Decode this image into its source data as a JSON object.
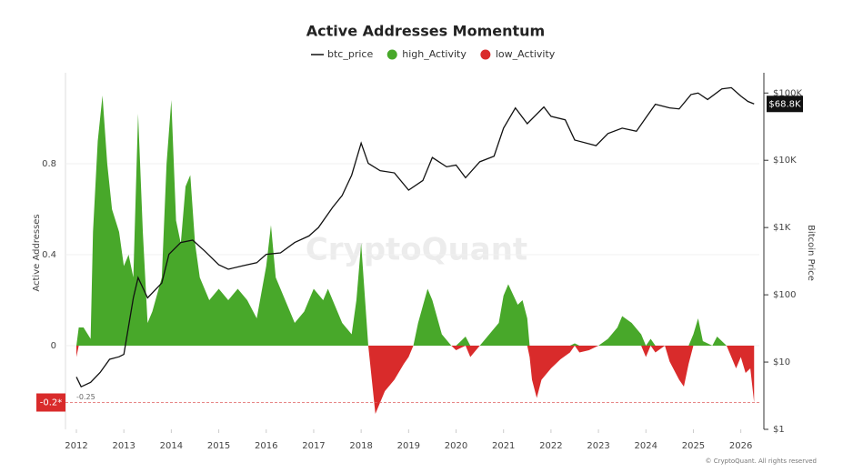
{
  "chart_data": {
    "type": "area",
    "title": "Active Addresses Momentum",
    "ylabel": "Active Addresses",
    "y2label": "Bitcoin Price",
    "watermark": "CryptoQuant",
    "footer": "© CryptoQuant. All rights reserved",
    "current_value_label": "-0.2*",
    "reference_line": -0.25,
    "price_label": "$68.8K",
    "xlim": [
      2011.77,
      2026.39
    ],
    "xticks": [
      2012,
      2013,
      2014,
      2015,
      2016,
      2017,
      2018,
      2019,
      2020,
      2021,
      2022,
      2023,
      2024,
      2025,
      2026
    ],
    "ylim": [
      -0.368,
      1.2
    ],
    "yticks": [
      0,
      0.4,
      0.8
    ],
    "y2lim": [
      1,
      200000
    ],
    "y2log": true,
    "y2ticks": [
      {
        "value": 1,
        "label": "$1"
      },
      {
        "value": 10,
        "label": "$10"
      },
      {
        "value": 100,
        "label": "$100"
      },
      {
        "value": 1000,
        "label": "$1K"
      },
      {
        "value": 10000,
        "label": "$10K"
      },
      {
        "value": 100000,
        "label": "$100K"
      }
    ],
    "grid": true,
    "legend": "top",
    "x": [
      2012.0,
      2012.05,
      2012.15,
      2012.3,
      2012.35,
      2012.45,
      2012.55,
      2012.65,
      2012.75,
      2012.9,
      2013.0,
      2013.1,
      2013.2,
      2013.3,
      2013.4,
      2013.5,
      2013.6,
      2013.8,
      2013.9,
      2014.0,
      2014.1,
      2014.2,
      2014.3,
      2014.4,
      2014.5,
      2014.6,
      2014.8,
      2015.0,
      2015.2,
      2015.4,
      2015.6,
      2015.8,
      2016.0,
      2016.1,
      2016.2,
      2016.4,
      2016.6,
      2016.8,
      2017.0,
      2017.2,
      2017.3,
      2017.5,
      2017.6,
      2017.8,
      2017.9,
      2018.0,
      2018.1,
      2018.15,
      2018.3,
      2018.5,
      2018.7,
      2018.9,
      2019.0,
      2019.1,
      2019.2,
      2019.4,
      2019.5,
      2019.7,
      2019.9,
      2020.0,
      2020.2,
      2020.3,
      2020.5,
      2020.7,
      2020.9,
      2021.0,
      2021.1,
      2021.3,
      2021.4,
      2021.5,
      2021.55,
      2021.6,
      2021.7,
      2021.8,
      2022.0,
      2022.2,
      2022.4,
      2022.5,
      2022.6,
      2022.8,
      2023.0,
      2023.2,
      2023.4,
      2023.5,
      2023.7,
      2023.9,
      2024.0,
      2024.1,
      2024.2,
      2024.4,
      2024.5,
      2024.7,
      2024.8,
      2024.9,
      2025.0,
      2025.1,
      2025.2,
      2025.4,
      2025.5,
      2025.7,
      2025.8,
      2025.9,
      2026.0,
      2026.1,
      2026.2,
      2026.28
    ],
    "series": [
      {
        "name": "btc_price",
        "color": "#111111",
        "axis": "y2",
        "x": [
          2012.0,
          2012.1,
          2012.3,
          2012.5,
          2012.7,
          2012.9,
          2013.0,
          2013.2,
          2013.3,
          2013.5,
          2013.8,
          2013.95,
          2014.2,
          2014.45,
          2014.7,
          2015.0,
          2015.2,
          2015.5,
          2015.8,
          2016.0,
          2016.3,
          2016.6,
          2016.9,
          2017.1,
          2017.4,
          2017.6,
          2017.8,
          2018.0,
          2018.15,
          2018.4,
          2018.7,
          2019.0,
          2019.3,
          2019.5,
          2019.8,
          2020.0,
          2020.2,
          2020.5,
          2020.8,
          2021.0,
          2021.25,
          2021.5,
          2021.85,
          2022.0,
          2022.3,
          2022.5,
          2022.95,
          2023.2,
          2023.5,
          2023.8,
          2024.0,
          2024.2,
          2024.5,
          2024.7,
          2024.95,
          2025.1,
          2025.3,
          2025.6,
          2025.8,
          2026.0,
          2026.15,
          2026.28
        ],
        "values": [
          6,
          4.3,
          5,
          7,
          11,
          12,
          13,
          90,
          180,
          90,
          150,
          400,
          600,
          650,
          450,
          280,
          240,
          270,
          300,
          400,
          420,
          600,
          750,
          1000,
          2000,
          3000,
          6000,
          18000,
          9000,
          7000,
          6500,
          3600,
          5000,
          11000,
          8000,
          8500,
          5500,
          9500,
          11500,
          30000,
          60000,
          35000,
          62000,
          45000,
          40000,
          20000,
          16500,
          25000,
          30000,
          27000,
          43000,
          68000,
          60000,
          58000,
          95000,
          100000,
          80000,
          115000,
          120000,
          90000,
          75000,
          68800
        ]
      },
      {
        "name": "high_Activity",
        "color": "#48a82a",
        "values": [
          0,
          0.08,
          0.08,
          0.03,
          0.5,
          0.9,
          1.1,
          0.8,
          0.6,
          0.5,
          0.35,
          0.4,
          0.3,
          1.02,
          0.5,
          0.1,
          0.15,
          0.3,
          0.8,
          1.08,
          0.55,
          0.45,
          0.7,
          0.75,
          0.45,
          0.3,
          0.2,
          0.25,
          0.2,
          0.25,
          0.2,
          0.12,
          0.35,
          0.53,
          0.3,
          0.2,
          0.1,
          0.15,
          0.25,
          0.2,
          0.25,
          0.15,
          0.1,
          0.05,
          0.2,
          0.45,
          0.15,
          0,
          0,
          0,
          0,
          0,
          0,
          0,
          0.1,
          0.25,
          0.2,
          0.05,
          0,
          0,
          0.04,
          0,
          0,
          0.05,
          0.1,
          0.22,
          0.27,
          0.18,
          0.2,
          0.12,
          0,
          0,
          0,
          0,
          0,
          0,
          0,
          0.01,
          0,
          0,
          0,
          0.03,
          0.08,
          0.13,
          0.1,
          0.05,
          0,
          0.03,
          0,
          0,
          0,
          0,
          0,
          0,
          0.05,
          0.12,
          0.02,
          0,
          0.04,
          0,
          0,
          0,
          0,
          0,
          0,
          0
        ]
      },
      {
        "name": "low_Activity",
        "color": "#d92b2b",
        "values": [
          -0.05,
          0,
          0,
          0,
          0,
          0,
          0,
          0,
          0,
          0,
          0,
          0,
          0,
          0,
          0,
          0,
          0,
          0,
          0,
          0,
          0,
          0,
          0,
          0,
          0,
          0,
          0,
          0,
          0,
          0,
          0,
          0,
          0,
          0,
          0,
          0,
          0,
          0,
          0,
          0,
          0,
          0,
          0,
          0,
          0,
          0,
          0,
          0,
          -0.3,
          -0.2,
          -0.15,
          -0.08,
          -0.05,
          0,
          0,
          0,
          0,
          0,
          0,
          -0.02,
          0,
          -0.05,
          0,
          0,
          0,
          0,
          0,
          0,
          0,
          0,
          -0.05,
          -0.15,
          -0.23,
          -0.15,
          -0.1,
          -0.06,
          -0.03,
          0,
          -0.03,
          -0.02,
          0,
          0,
          0,
          0,
          0,
          0,
          -0.05,
          0,
          -0.03,
          0,
          -0.07,
          -0.15,
          -0.18,
          -0.08,
          0,
          0,
          0,
          0,
          0,
          0,
          -0.05,
          -0.1,
          -0.05,
          -0.12,
          -0.1,
          -0.25
        ]
      }
    ]
  }
}
